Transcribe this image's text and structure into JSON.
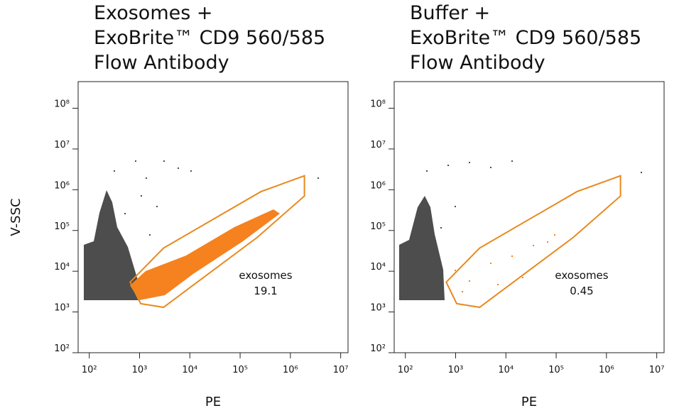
{
  "chart_data": [
    {
      "type": "scatter",
      "title": [
        "Exosomes +",
        "ExoBrite™ CD9 560/585",
        "Flow Antibody"
      ],
      "xlabel": "PE",
      "ylabel": "V-SSC",
      "log_scale": true,
      "xlim": [
        60,
        14000000
      ],
      "ylim": [
        100,
        450000000
      ],
      "xticks": [
        {
          "value": 100,
          "label": "10²"
        },
        {
          "value": 1000,
          "label": "10³"
        },
        {
          "value": 10000,
          "label": "10⁴"
        },
        {
          "value": 100000,
          "label": "10⁵"
        },
        {
          "value": 1000000,
          "label": "10⁶"
        },
        {
          "value": 10000000,
          "label": "10⁷"
        }
      ],
      "yticks": [
        {
          "value": 100,
          "label": "10²"
        },
        {
          "value": 1000,
          "label": "10³"
        },
        {
          "value": 10000,
          "label": "10⁴"
        },
        {
          "value": 100000,
          "label": "10⁵"
        },
        {
          "value": 1000000,
          "label": "10⁶"
        },
        {
          "value": 10000000,
          "label": "10⁷"
        },
        {
          "value": 100000000,
          "label": "10⁸"
        }
      ],
      "gate": {
        "name": "exosomes",
        "value": 19.1,
        "color": "#e8891e",
        "x": [
          650,
          3000,
          260000,
          1900000,
          1900000,
          220000,
          3000,
          1050
        ],
        "y": [
          5400,
          37000,
          900000,
          2200000,
          700000,
          68000,
          1300,
          1600
        ]
      }
    },
    {
      "type": "scatter",
      "title": [
        "Buffer +",
        "ExoBrite™ CD9 560/585",
        "Flow Antibody"
      ],
      "xlabel": "PE",
      "log_scale": true,
      "xlim": [
        60,
        14000000
      ],
      "ylim": [
        100,
        450000000
      ],
      "xticks": [
        {
          "value": 100,
          "label": "10²"
        },
        {
          "value": 1000,
          "label": "10³"
        },
        {
          "value": 10000,
          "label": "10⁴"
        },
        {
          "value": 100000,
          "label": "10⁵"
        },
        {
          "value": 1000000,
          "label": "10⁶"
        },
        {
          "value": 10000000,
          "label": "10⁷"
        }
      ],
      "yticks": [
        {
          "value": 100,
          "label": "10²"
        },
        {
          "value": 1000,
          "label": "10³"
        },
        {
          "value": 10000,
          "label": "10⁴"
        },
        {
          "value": 100000,
          "label": "10⁵"
        },
        {
          "value": 1000000,
          "label": "10⁶"
        },
        {
          "value": 10000000,
          "label": "10⁷"
        },
        {
          "value": 100000000,
          "label": "10⁸"
        }
      ],
      "gate": {
        "name": "exosomes",
        "value": 0.45,
        "color": "#e8891e",
        "x": [
          650,
          3000,
          260000,
          1900000,
          1900000,
          220000,
          3000,
          1050
        ],
        "y": [
          5400,
          37000,
          900000,
          2200000,
          700000,
          68000,
          1300,
          1600
        ]
      }
    }
  ]
}
